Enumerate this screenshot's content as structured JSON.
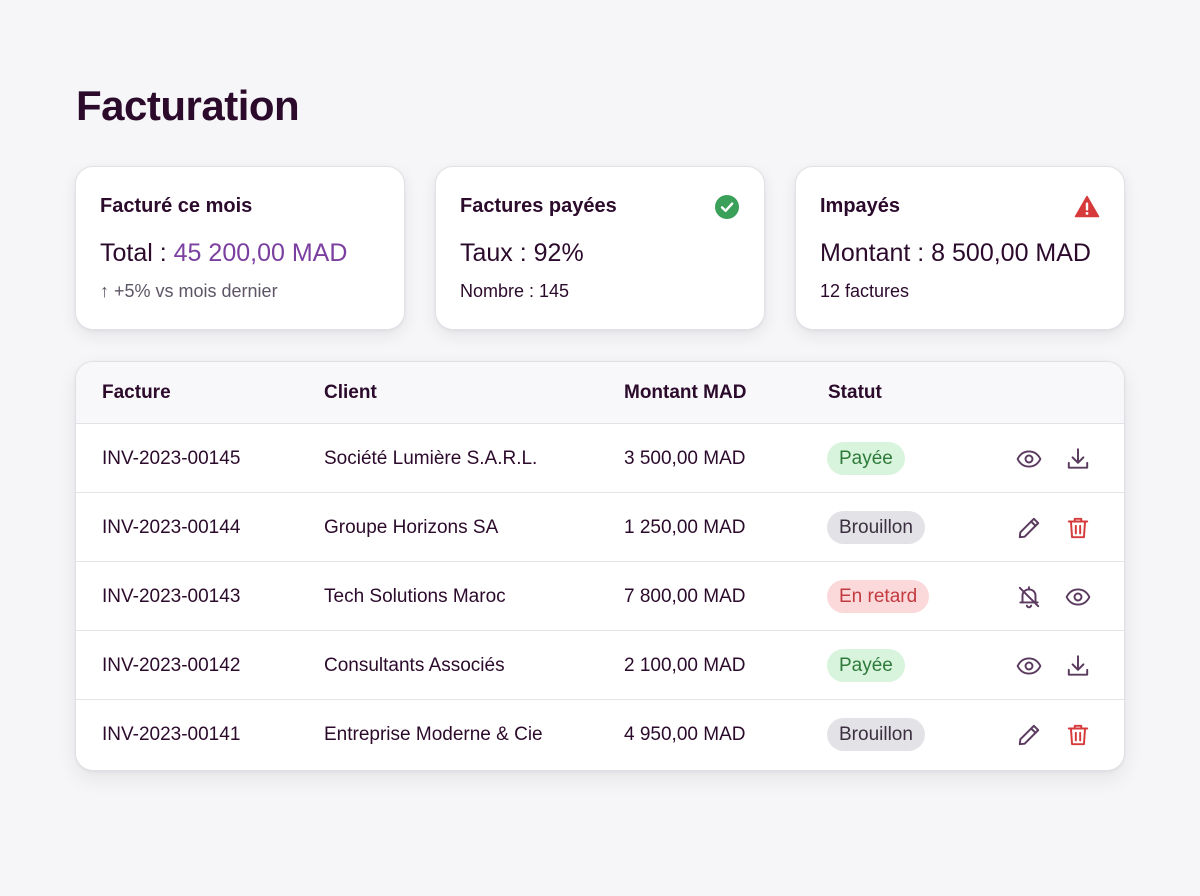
{
  "page": {
    "title": "Facturation"
  },
  "cards": [
    {
      "title": "Facturé ce mois",
      "main_label": "Total : ",
      "main_value": "45 200,00 MAD",
      "sub": "↑ +5% vs mois dernier",
      "icon": ""
    },
    {
      "title": "Factures payées",
      "main_label": "Taux : ",
      "main_value": "92%",
      "sub": "Nombre : 145",
      "icon": "check-circle-icon"
    },
    {
      "title": "Impayés",
      "main_label": "Montant : ",
      "main_value": "8 500,00 MAD",
      "sub": "12 factures",
      "icon": "warning-triangle-icon"
    }
  ],
  "table": {
    "headers": {
      "invoice": "Facture",
      "client": "Client",
      "amount": "Montant MAD",
      "status": "Statut"
    },
    "rows": [
      {
        "invoice": "INV-2023-00145",
        "client": "Société Lumière S.A.R.L.",
        "amount": "3 500,00 MAD",
        "status": "Payée",
        "status_kind": "paid",
        "actions": [
          "eye-icon",
          "download-icon"
        ]
      },
      {
        "invoice": "INV-2023-00144",
        "client": "Groupe Horizons SA",
        "amount": "1 250,00 MAD",
        "status": "Brouillon",
        "status_kind": "draft",
        "actions": [
          "pencil-icon",
          "trash-icon"
        ]
      },
      {
        "invoice": "INV-2023-00143",
        "client": "Tech Solutions Maroc",
        "amount": "7 800,00 MAD",
        "status": "En retard",
        "status_kind": "late",
        "actions": [
          "bell-off-icon",
          "eye-icon"
        ]
      },
      {
        "invoice": "INV-2023-00142",
        "client": "Consultants Associés",
        "amount": "2 100,00 MAD",
        "status": "Payée",
        "status_kind": "paid",
        "actions": [
          "eye-icon",
          "download-icon"
        ]
      },
      {
        "invoice": "INV-2023-00141",
        "client": "Entreprise Moderne & Cie",
        "amount": "4 950,00 MAD",
        "status": "Brouillon",
        "status_kind": "draft",
        "actions": [
          "pencil-icon",
          "trash-icon"
        ]
      }
    ]
  },
  "colors": {
    "accent": "#7b3fa0",
    "success": "#3aa05a",
    "danger": "#d63a3a",
    "icon": "#5a3a5e"
  }
}
